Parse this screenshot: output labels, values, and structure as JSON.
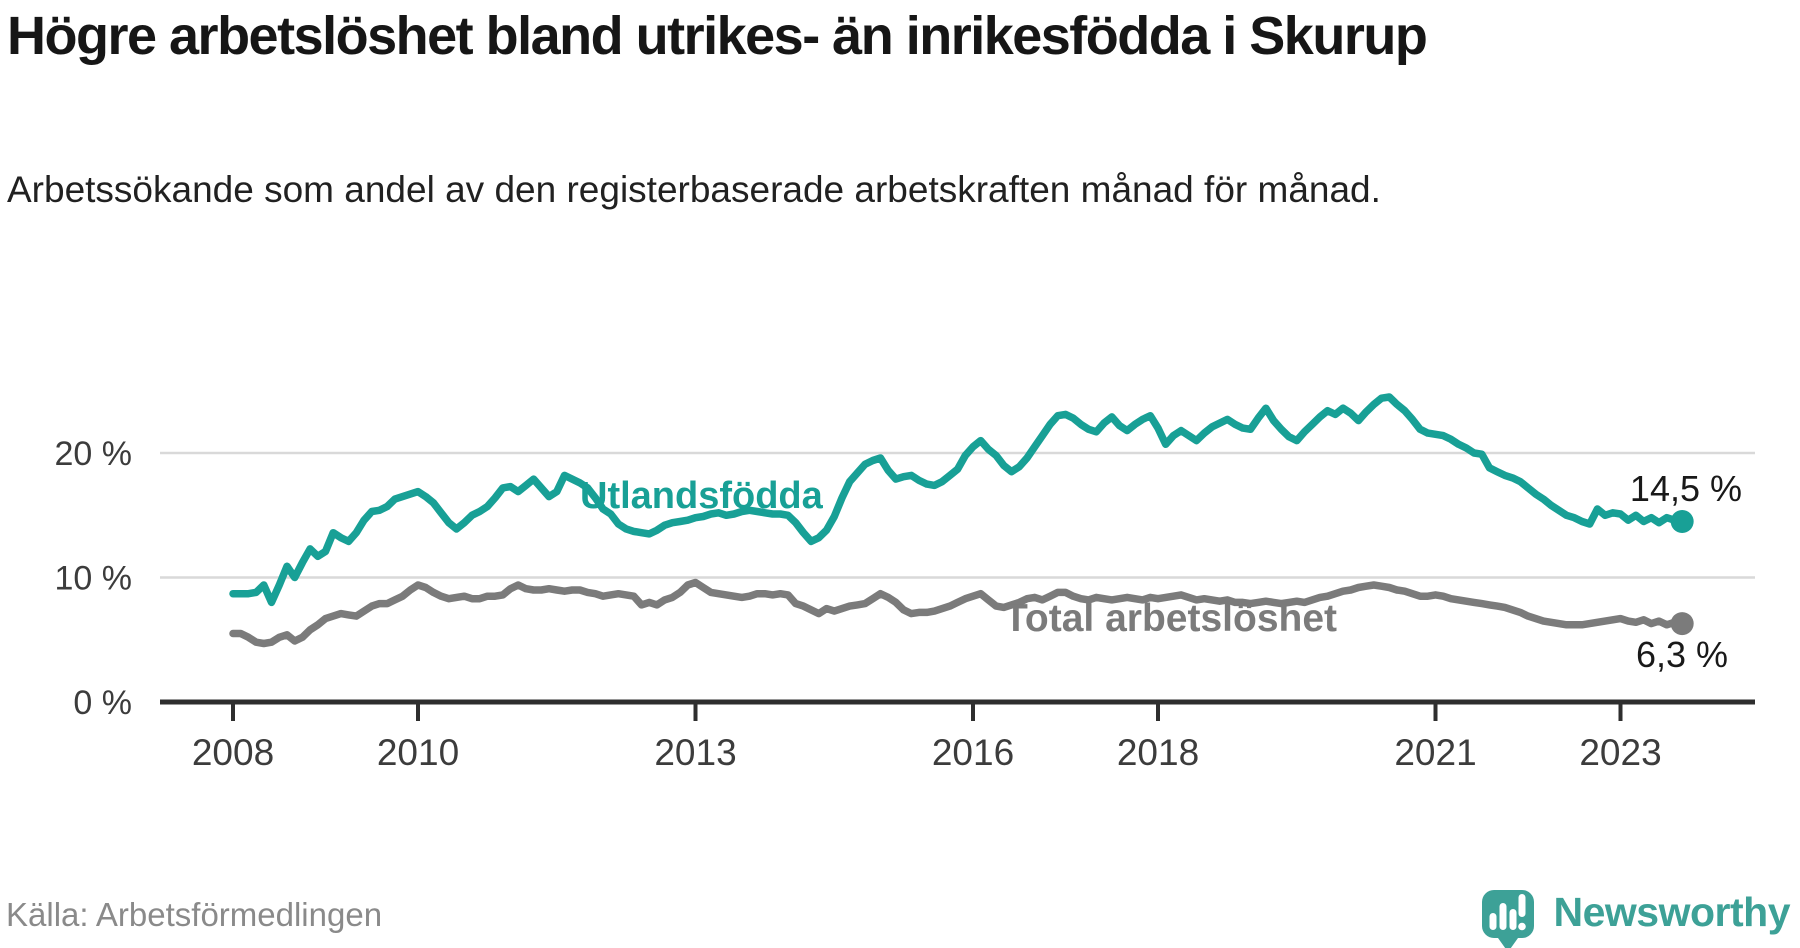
{
  "page": {
    "title": "Högre arbetslöshet bland utrikes- än inrikesfödda i Skurup",
    "subtitle": "Arbetssökande som andel av den registerbaserade arbetskraften månad för månad.",
    "source": "Källa: Arbetsförmedlingen"
  },
  "branding": {
    "name": "Newsworthy",
    "icon": "newsworthy-pin-barchart-icon",
    "color": "#3da197"
  },
  "colors": {
    "foreign_born_line": "#18a096",
    "total_line": "#7b7b7b",
    "grid": "#d9d9d9",
    "axis": "#2e2e2e",
    "axis_label": "#3c3c3c",
    "value_label": "#191919"
  },
  "chart_data": {
    "type": "line",
    "title": "Högre arbetslöshet bland utrikes- än inrikesfödda i Skurup",
    "subtitle": "Arbetssökande som andel av den registerbaserade arbetskraften månad för månad.",
    "xlabel": "",
    "ylabel": "",
    "x_axis": {
      "tick_years": [
        2008,
        2010,
        2013,
        2016,
        2018,
        2021,
        2023
      ],
      "tick_labels": [
        "2008",
        "2010",
        "2013",
        "2016",
        "2018",
        "2021",
        "2023"
      ],
      "start": 2008.0,
      "end": 2023.67
    },
    "y_axis": {
      "tick_values": [
        0,
        10,
        20
      ],
      "tick_labels": [
        "0 %",
        "10 %",
        "20 %"
      ],
      "range": [
        0,
        28
      ],
      "grid": true
    },
    "legend_position": "inline-labels",
    "series": [
      {
        "name": "Utlandsfödda",
        "color": "#18a096",
        "start_year": 2008,
        "points_per_year": 12,
        "end_label": "14,5 %",
        "end_value": 14.5,
        "values": [
          8.7,
          8.7,
          8.7,
          8.8,
          9.4,
          8.0,
          9.4,
          10.9,
          10.0,
          11.2,
          12.3,
          11.7,
          12.1,
          13.6,
          13.2,
          12.9,
          13.6,
          14.6,
          15.3,
          15.4,
          15.7,
          16.3,
          16.5,
          16.7,
          16.9,
          16.5,
          16.0,
          15.2,
          14.4,
          13.9,
          14.4,
          15.0,
          15.3,
          15.7,
          16.4,
          17.2,
          17.3,
          16.9,
          17.4,
          17.9,
          17.2,
          16.5,
          16.9,
          18.2,
          17.9,
          17.6,
          17.2,
          16.4,
          15.5,
          15.1,
          14.3,
          13.9,
          13.7,
          13.6,
          13.5,
          13.8,
          14.2,
          14.4,
          14.5,
          14.6,
          14.8,
          14.9,
          15.1,
          15.2,
          15.0,
          15.1,
          15.3,
          15.4,
          15.3,
          15.2,
          15.1,
          15.1,
          15.0,
          14.4,
          13.6,
          12.9,
          13.2,
          13.8,
          14.9,
          16.4,
          17.7,
          18.4,
          19.1,
          19.4,
          19.6,
          18.6,
          17.9,
          18.1,
          18.2,
          17.8,
          17.5,
          17.4,
          17.7,
          18.2,
          18.7,
          19.8,
          20.5,
          21.0,
          20.3,
          19.8,
          19.0,
          18.5,
          18.9,
          19.6,
          20.5,
          21.4,
          22.3,
          23.0,
          23.1,
          22.8,
          22.3,
          21.9,
          21.7,
          22.4,
          22.9,
          22.2,
          21.8,
          22.3,
          22.7,
          23.0,
          22.0,
          20.7,
          21.4,
          21.8,
          21.4,
          21.0,
          21.6,
          22.1,
          22.4,
          22.7,
          22.3,
          22.0,
          21.9,
          22.8,
          23.6,
          22.6,
          21.9,
          21.3,
          21.0,
          21.7,
          22.3,
          22.9,
          23.4,
          23.1,
          23.6,
          23.2,
          22.6,
          23.3,
          23.9,
          24.4,
          24.5,
          23.9,
          23.4,
          22.7,
          21.9,
          21.6,
          21.5,
          21.4,
          21.1,
          20.7,
          20.4,
          20.0,
          19.9,
          18.8,
          18.5,
          18.2,
          18.0,
          17.7,
          17.2,
          16.7,
          16.3,
          15.8,
          15.4,
          15.0,
          14.8,
          14.5,
          14.3,
          15.5,
          15.0,
          15.2,
          15.1,
          14.6,
          15.0,
          14.5,
          14.8,
          14.4,
          14.8,
          14.6,
          14.5
        ]
      },
      {
        "name": "Total arbetslöshet",
        "color": "#7b7b7b",
        "start_year": 2008,
        "points_per_year": 12,
        "end_label": "6,3 %",
        "end_value": 6.3,
        "values": [
          5.5,
          5.5,
          5.2,
          4.8,
          4.7,
          4.8,
          5.2,
          5.4,
          4.9,
          5.2,
          5.8,
          6.2,
          6.7,
          6.9,
          7.1,
          7.0,
          6.9,
          7.3,
          7.7,
          7.9,
          7.9,
          8.2,
          8.5,
          9.0,
          9.4,
          9.2,
          8.8,
          8.5,
          8.3,
          8.4,
          8.5,
          8.3,
          8.3,
          8.5,
          8.5,
          8.6,
          9.1,
          9.4,
          9.1,
          9.0,
          9.0,
          9.1,
          9.0,
          8.9,
          9.0,
          9.0,
          8.8,
          8.7,
          8.5,
          8.6,
          8.7,
          8.6,
          8.5,
          7.8,
          8.0,
          7.8,
          8.2,
          8.4,
          8.8,
          9.4,
          9.6,
          9.2,
          8.8,
          8.7,
          8.6,
          8.5,
          8.4,
          8.5,
          8.7,
          8.7,
          8.6,
          8.7,
          8.6,
          7.9,
          7.7,
          7.4,
          7.1,
          7.5,
          7.3,
          7.5,
          7.7,
          7.8,
          7.9,
          8.3,
          8.7,
          8.4,
          8.0,
          7.4,
          7.1,
          7.2,
          7.2,
          7.3,
          7.5,
          7.7,
          8.0,
          8.3,
          8.5,
          8.7,
          8.2,
          7.7,
          7.6,
          7.8,
          8.0,
          8.3,
          8.4,
          8.2,
          8.5,
          8.8,
          8.8,
          8.5,
          8.3,
          8.2,
          8.4,
          8.3,
          8.2,
          8.3,
          8.4,
          8.3,
          8.2,
          8.4,
          8.3,
          8.4,
          8.5,
          8.6,
          8.4,
          8.2,
          8.3,
          8.2,
          8.1,
          8.2,
          8.0,
          8.0,
          7.9,
          8.0,
          8.1,
          8.0,
          7.9,
          8.0,
          8.1,
          8.0,
          8.2,
          8.4,
          8.5,
          8.7,
          8.9,
          9.0,
          9.2,
          9.3,
          9.4,
          9.3,
          9.2,
          9.0,
          8.9,
          8.7,
          8.5,
          8.5,
          8.6,
          8.5,
          8.3,
          8.2,
          8.1,
          8.0,
          7.9,
          7.8,
          7.7,
          7.6,
          7.4,
          7.2,
          6.9,
          6.7,
          6.5,
          6.4,
          6.3,
          6.2,
          6.2,
          6.2,
          6.3,
          6.4,
          6.5,
          6.6,
          6.7,
          6.5,
          6.4,
          6.6,
          6.3,
          6.5,
          6.2,
          6.4,
          6.3
        ]
      }
    ]
  }
}
